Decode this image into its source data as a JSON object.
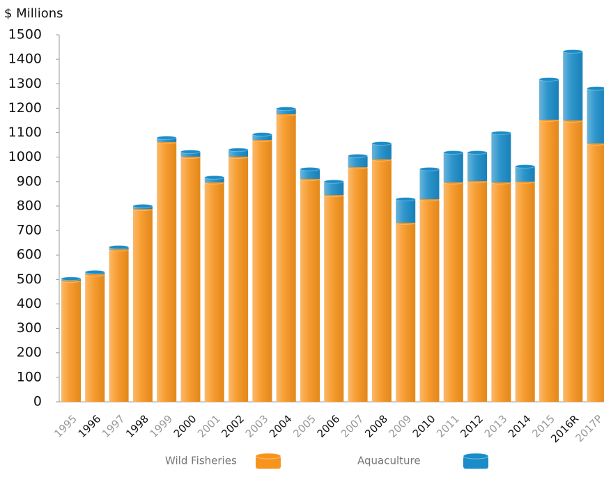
{
  "chart_data": {
    "type": "stacked_bar",
    "y_label": "$ Millions",
    "categories": [
      "1995",
      "1996",
      "1997",
      "1998",
      "1999",
      "2000",
      "2001",
      "2002",
      "2003",
      "2004",
      "2005",
      "2006",
      "2007",
      "2008",
      "2009",
      "2010",
      "2011",
      "2012",
      "2013",
      "2014",
      "2015",
      "2016R",
      "2017P"
    ],
    "series": [
      {
        "name": "Wild Fisheries",
        "color": "#f7941d",
        "values": [
          495,
          521,
          623,
          788,
          1062,
          1002,
          897,
          1002,
          1070,
          1176,
          911,
          845,
          959,
          991,
          732,
          828,
          897,
          902,
          897,
          900,
          1153,
          1150,
          1056
        ]
      },
      {
        "name": "Aquaculture",
        "color": "#1a8cc8",
        "values": [
          8,
          9,
          9,
          12,
          17,
          20,
          20,
          28,
          23,
          22,
          40,
          55,
          46,
          65,
          96,
          123,
          122,
          117,
          202,
          62,
          165,
          282,
          225
        ]
      }
    ],
    "ylim": [
      0,
      1500
    ],
    "yticks": [
      0,
      100,
      200,
      300,
      400,
      500,
      600,
      700,
      800,
      900,
      1000,
      1100,
      1200,
      1300,
      1400,
      1500
    ],
    "legend": "bottom"
  }
}
